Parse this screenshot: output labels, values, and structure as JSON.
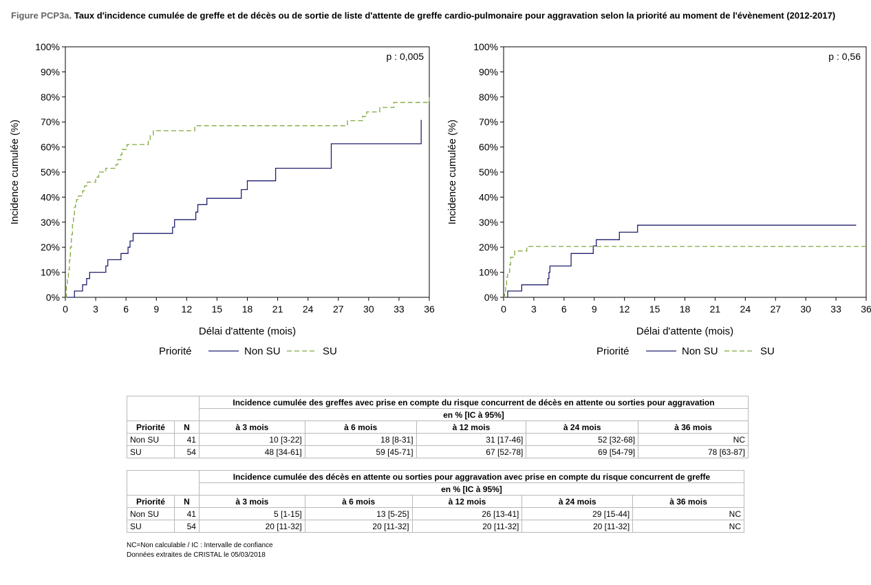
{
  "title": {
    "prefix": "Figure PCP3a.",
    "text": "Taux d'incidence cumulée de greffe et de décès ou de sortie de liste d'attente de greffe cardio-pulmonaire pour aggravation selon la priorité au moment de l'évènement (2012-2017)"
  },
  "colors": {
    "non_su": "#1f1f6e",
    "su": "#7ea83a",
    "axis": "#000000"
  },
  "legend": {
    "title": "Priorité",
    "non_su": "Non SU",
    "su": "SU"
  },
  "chart_data": [
    {
      "type": "line",
      "step": true,
      "xlabel": "Délai d'attente (mois)",
      "ylabel": "Incidence cumulée (%)",
      "xlim": [
        0,
        36
      ],
      "ylim": [
        0,
        100
      ],
      "xticks": [
        0,
        3,
        6,
        9,
        12,
        15,
        18,
        21,
        24,
        27,
        30,
        33,
        36
      ],
      "yticks": [
        "0%",
        "10%",
        "20%",
        "30%",
        "40%",
        "50%",
        "60%",
        "70%",
        "80%",
        "90%",
        "100%"
      ],
      "annotation": "p : 0,005",
      "series": [
        {
          "name": "Non SU",
          "dash": "solid",
          "points": [
            [
              0,
              0
            ],
            [
              0.9,
              2.5
            ],
            [
              1.7,
              5
            ],
            [
              2.1,
              7.5
            ],
            [
              2.4,
              10
            ],
            [
              4.0,
              12.5
            ],
            [
              4.2,
              15
            ],
            [
              5.5,
              17.5
            ],
            [
              6.2,
              20
            ],
            [
              6.4,
              22.5
            ],
            [
              6.7,
              25.5
            ],
            [
              10.6,
              28
            ],
            [
              10.8,
              31
            ],
            [
              12.9,
              34
            ],
            [
              13.1,
              37
            ],
            [
              14.0,
              39.5
            ],
            [
              17.4,
              43
            ],
            [
              18.0,
              46.5
            ],
            [
              20.8,
              51.5
            ],
            [
              26.3,
              61.3
            ],
            [
              35.2,
              70.8
            ]
          ]
        },
        {
          "name": "SU",
          "dash": "dashed",
          "points": [
            [
              0,
              0
            ],
            [
              0.1,
              5
            ],
            [
              0.2,
              8
            ],
            [
              0.3,
              11
            ],
            [
              0.4,
              15
            ],
            [
              0.5,
              20
            ],
            [
              0.6,
              25
            ],
            [
              0.7,
              29
            ],
            [
              0.8,
              33
            ],
            [
              0.9,
              36
            ],
            [
              1.0,
              38
            ],
            [
              1.1,
              39
            ],
            [
              1.3,
              40.5
            ],
            [
              1.7,
              42.5
            ],
            [
              1.9,
              44.5
            ],
            [
              2.2,
              46
            ],
            [
              3.0,
              48
            ],
            [
              3.3,
              50
            ],
            [
              4.0,
              51.5
            ],
            [
              5.0,
              53
            ],
            [
              5.2,
              55
            ],
            [
              5.5,
              57
            ],
            [
              5.6,
              59
            ],
            [
              6.1,
              61
            ],
            [
              8.2,
              63
            ],
            [
              8.4,
              64.5
            ],
            [
              8.7,
              66.5
            ],
            [
              12.8,
              68.5
            ],
            [
              27.9,
              70.5
            ],
            [
              29.4,
              72.2
            ],
            [
              29.8,
              74
            ],
            [
              31.1,
              75.8
            ],
            [
              32.5,
              77.8
            ],
            [
              36,
              79.8
            ]
          ]
        }
      ]
    },
    {
      "type": "line",
      "step": true,
      "xlabel": "Délai d'attente (mois)",
      "ylabel": "Incidence cumulée (%)",
      "xlim": [
        0,
        36
      ],
      "ylim": [
        0,
        100
      ],
      "xticks": [
        0,
        3,
        6,
        9,
        12,
        15,
        18,
        21,
        24,
        27,
        30,
        33,
        36
      ],
      "yticks": [
        "0%",
        "10%",
        "20%",
        "30%",
        "40%",
        "50%",
        "60%",
        "70%",
        "80%",
        "90%",
        "100%"
      ],
      "annotation": "p : 0,56",
      "series": [
        {
          "name": "Non SU",
          "dash": "solid",
          "points": [
            [
              0,
              0
            ],
            [
              0.4,
              2.5
            ],
            [
              1.8,
              5
            ],
            [
              4.4,
              7.5
            ],
            [
              4.5,
              10
            ],
            [
              4.6,
              12.5
            ],
            [
              6.7,
              17.5
            ],
            [
              8.9,
              20.5
            ],
            [
              9.2,
              23
            ],
            [
              11.5,
              26
            ],
            [
              13.3,
              28.8
            ],
            [
              35.0,
              28.8
            ]
          ]
        },
        {
          "name": "SU",
          "dash": "dashed",
          "points": [
            [
              0,
              0
            ],
            [
              0.1,
              2.5
            ],
            [
              0.2,
              5
            ],
            [
              0.3,
              8
            ],
            [
              0.4,
              10
            ],
            [
              0.6,
              13
            ],
            [
              0.7,
              16
            ],
            [
              1.1,
              18.5
            ],
            [
              2.3,
              20.3
            ],
            [
              36,
              20.3
            ]
          ]
        }
      ]
    }
  ],
  "tables": [
    {
      "header": "Incidence cumulée des greffes avec prise en compte du risque concurrent de décès en attente ou sorties pour aggravation",
      "subheader": "en % [IC à 95%]",
      "col_priorite": "Priorité",
      "col_n": "N",
      "periods": [
        "à 3 mois",
        "à 6 mois",
        "à 12 mois",
        "à 24 mois",
        "à 36 mois"
      ],
      "rows": [
        {
          "label": "Non SU",
          "n": "41",
          "values": [
            "10 [3-22]",
            "18 [8-31]",
            "31 [17-46]",
            "52 [32-68]",
            "NC"
          ]
        },
        {
          "label": "SU",
          "n": "54",
          "values": [
            "48 [34-61]",
            "59 [45-71]",
            "67 [52-78]",
            "69 [54-79]",
            "78 [63-87]"
          ]
        }
      ]
    },
    {
      "header": "Incidence cumulée des décès en attente ou sorties pour aggravation avec prise en compte du risque concurrent de greffe",
      "subheader": "en % [IC à 95%]",
      "col_priorite": "Priorité",
      "col_n": "N",
      "periods": [
        "à 3 mois",
        "à 6 mois",
        "à 12 mois",
        "à 24 mois",
        "à 36 mois"
      ],
      "rows": [
        {
          "label": "Non SU",
          "n": "41",
          "values": [
            "5 [1-15]",
            "13 [5-25]",
            "26 [13-41]",
            "29 [15-44]",
            "NC"
          ]
        },
        {
          "label": "SU",
          "n": "54",
          "values": [
            "20 [11-32]",
            "20 [11-32]",
            "20 [11-32]",
            "20 [11-32]",
            "NC"
          ]
        }
      ]
    }
  ],
  "footer": {
    "line1": "NC=Non calculable / IC : Intervalle de confiance",
    "line2": "Données extraites de CRISTAL le 05/03/2018"
  }
}
